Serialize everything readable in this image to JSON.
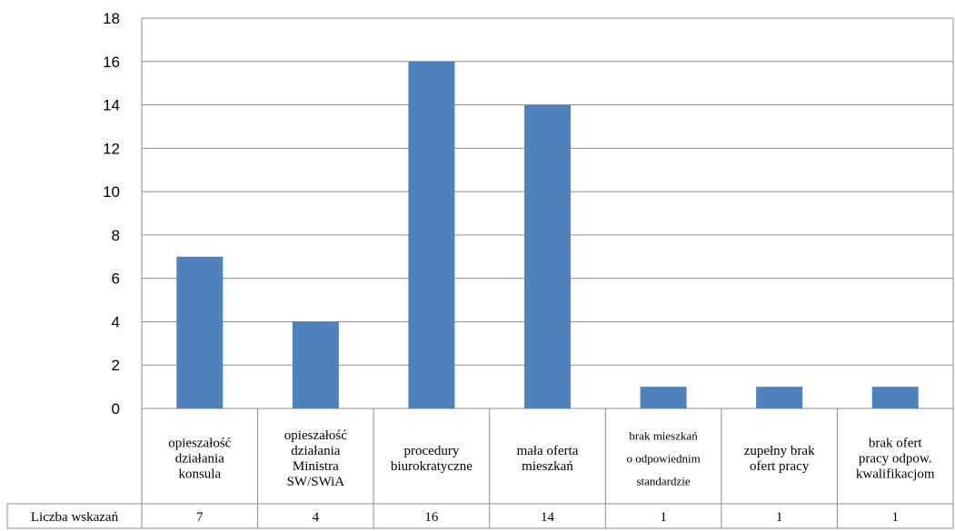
{
  "chart_data": {
    "type": "bar",
    "ylim": [
      0,
      18
    ],
    "yticks": [
      0,
      2,
      4,
      6,
      8,
      10,
      12,
      14,
      16,
      18
    ],
    "grid": true,
    "bar_color": "#4F81BD",
    "categories": [
      [
        "opieszałość",
        "działania",
        "konsula"
      ],
      [
        "opieszałość",
        "działania",
        "Ministra",
        "SW/SWiA"
      ],
      [
        "procedury",
        "biurokratyczne"
      ],
      [
        "mała oferta",
        "mieszkań"
      ],
      [
        "brak mieszkań",
        "o odpowiednim",
        "standardzie"
      ],
      [
        "zupełny brak",
        "ofert pracy"
      ],
      [
        "brak ofert",
        "pracy odpow.",
        "kwalifikacjom"
      ]
    ],
    "series": [
      {
        "name": "Liczba wskazań",
        "values": [
          7,
          4,
          16,
          14,
          1,
          1,
          1
        ]
      }
    ]
  }
}
